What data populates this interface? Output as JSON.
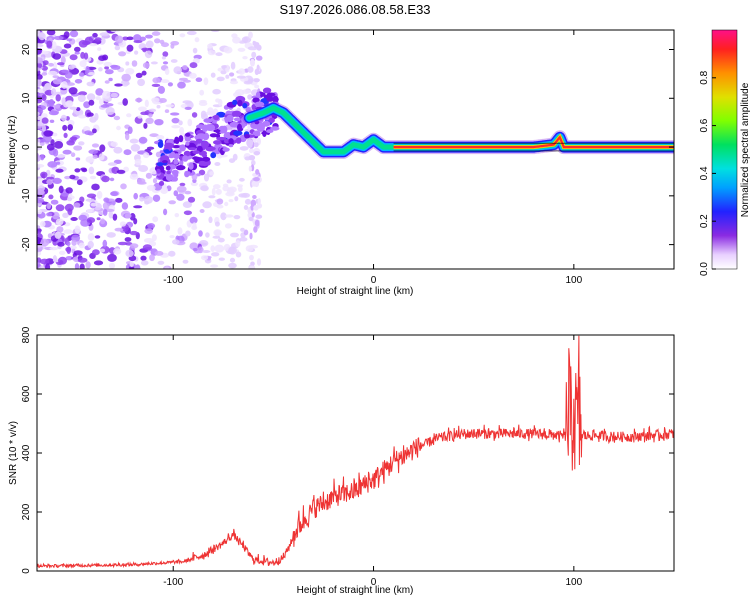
{
  "title": "S197.2026.086.08.58.E33",
  "chart_data": [
    {
      "type": "heatmap",
      "title": "S197.2026.086.08.58.E33",
      "xlabel": "Height of straight line (km)",
      "ylabel": "Frequency (Hz)",
      "xlim": [
        -168,
        150
      ],
      "ylim": [
        -25,
        24
      ],
      "xticks": [
        -100,
        0,
        100
      ],
      "yticks": [
        -20,
        -10,
        0,
        10,
        20
      ],
      "colorbar": {
        "label": "Normalized spectral amplitude",
        "ticks": [
          "0.0",
          "0.2",
          "0.4",
          "0.6",
          "0.8"
        ],
        "range": [
          0,
          1
        ]
      },
      "ridge": {
        "x": [
          -100,
          -90,
          -80,
          -70,
          -62,
          -55,
          -50,
          -45,
          -40,
          -35,
          -30,
          -25,
          -20,
          -15,
          -10,
          -5,
          0,
          5,
          10,
          20,
          40,
          60,
          80,
          90,
          93,
          95,
          100,
          120,
          150
        ],
        "y": [
          -3,
          -1,
          2,
          5,
          6,
          7,
          8,
          7,
          5,
          3,
          1,
          -1,
          -1,
          -1,
          0.5,
          0,
          1.5,
          0,
          0,
          0,
          0,
          0,
          0,
          0.5,
          2,
          0,
          0,
          0,
          0
        ]
      }
    },
    {
      "type": "line",
      "xlabel": "Height of straight line (km)",
      "ylabel": "SNR (10 * v/v)",
      "xlim": [
        -168,
        150
      ],
      "ylim": [
        0,
        800
      ],
      "xticks": [
        -100,
        0,
        100
      ],
      "yticks": [
        0,
        200,
        400,
        600,
        800
      ],
      "series": [
        {
          "name": "SNR",
          "color": "#ee3333",
          "trend_x": [
            -168,
            -120,
            -95,
            -85,
            -75,
            -70,
            -65,
            -60,
            -50,
            -45,
            -40,
            -35,
            -30,
            -20,
            -10,
            0,
            10,
            20,
            30,
            40,
            50,
            60,
            70,
            80,
            90,
            98,
            100,
            102,
            110,
            120,
            130,
            150
          ],
          "trend_y": [
            15,
            20,
            30,
            50,
            90,
            120,
            80,
            35,
            25,
            40,
            110,
            160,
            200,
            240,
            260,
            300,
            360,
            400,
            440,
            455,
            460,
            460,
            460,
            460,
            455,
            450,
            460,
            450,
            455,
            450,
            450,
            460
          ]
        }
      ]
    }
  ]
}
